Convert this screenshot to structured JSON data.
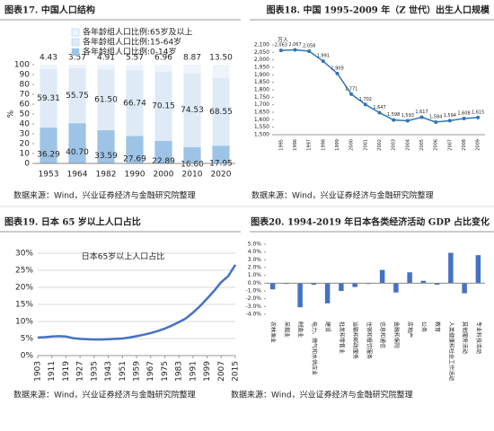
{
  "chart_data": [
    {
      "type": "bar",
      "stacked": true,
      "title": "图表17. 中国人口结构",
      "y_label": "%",
      "source": "数据来源：Wind，兴业证券经济与金融研究院整理",
      "categories": [
        "1953",
        "1964",
        "1982",
        "1990",
        "2000",
        "2010",
        "2020"
      ],
      "series": [
        {
          "name": "各年龄组人口比例:0-14岁",
          "color": "#9dc3e6",
          "values": [
            36.29,
            40.7,
            33.59,
            27.69,
            22.89,
            16.6,
            17.95
          ],
          "value_labels": [
            "36.29",
            "40.70",
            "33.59",
            "27.69",
            "22.89",
            "16.60",
            "17.95"
          ]
        },
        {
          "name": "各年龄组人口比例:15-64岁",
          "color": "#deebf7",
          "values": [
            59.31,
            55.75,
            61.5,
            66.74,
            70.15,
            74.53,
            68.55
          ],
          "value_labels": [
            "59.31",
            "55.75",
            "61.50",
            "66.74",
            "70.15",
            "74.53",
            "68.55"
          ]
        },
        {
          "name": "各年龄组人口比例:65岁及以上",
          "color": "#eef4fb",
          "values": [
            4.43,
            3.57,
            4.91,
            5.57,
            6.96,
            8.87,
            13.5
          ],
          "value_labels": [
            "4.43",
            "3.57",
            "4.91",
            "5.57",
            "6.96",
            "8.87",
            "13.50"
          ]
        }
      ],
      "ylim": [
        0,
        100
      ],
      "yticks": [
        0,
        10,
        20,
        30,
        40,
        50,
        60,
        70,
        80,
        90,
        100
      ],
      "grid": false
    },
    {
      "type": "line",
      "title": "图表18. 中国 1995-2009 年（Z 世代）出生人口规模",
      "y_label": "万人",
      "source": "数据来源：Wind，兴业证券经济与金融研究院整理",
      "categories": [
        "1995",
        "1996",
        "1997",
        "1998",
        "1999",
        "2000",
        "2001",
        "2002",
        "2003",
        "2004",
        "2005",
        "2006",
        "2007",
        "2008",
        "2009"
      ],
      "values": [
        2063,
        2067,
        2058,
        1991,
        1909,
        1771,
        1702,
        1647,
        1598,
        1593,
        1617,
        1584,
        1594,
        1608,
        1615
      ],
      "value_labels": [
        "2,063",
        "2,067",
        "2,058",
        "1,991",
        "1,909",
        "1,771",
        "1,702",
        "1,647",
        "1,598",
        "1,593",
        "1,617",
        "1,584",
        "1,594",
        "1,608",
        "1,615"
      ],
      "color": "#2e75b6",
      "markers": true,
      "ylim": [
        1500,
        2100
      ],
      "yticks": [
        {
          "value": 1500,
          "label": "1,500"
        },
        {
          "value": 1550,
          "label": "1,550"
        },
        {
          "value": 1600,
          "label": "1,600"
        },
        {
          "value": 1650,
          "label": "1,650"
        },
        {
          "value": 1700,
          "label": "1,700"
        },
        {
          "value": 1750,
          "label": "1,750"
        },
        {
          "value": 1800,
          "label": "1,800"
        },
        {
          "value": 1850,
          "label": "1,850"
        },
        {
          "value": 1900,
          "label": "1,900"
        },
        {
          "value": 1950,
          "label": "1,950"
        },
        {
          "value": 2000,
          "label": "2,000"
        },
        {
          "value": 2050,
          "label": "2,050"
        },
        {
          "value": 2100,
          "label": "2,100"
        }
      ],
      "grid": false
    },
    {
      "type": "line",
      "title": "图表19. 日本 65 岁以上人口占比",
      "annotation": "日本65岁以上人口占比",
      "source": "数据来源：Wind，兴业证券经济与金融研究院整理",
      "x": [
        1903,
        1907,
        1911,
        1915,
        1919,
        1923,
        1927,
        1931,
        1935,
        1939,
        1943,
        1947,
        1951,
        1955,
        1959,
        1963,
        1967,
        1971,
        1975,
        1979,
        1983,
        1987,
        1991,
        1995,
        1999,
        2003,
        2007,
        2011,
        2015
      ],
      "values": [
        5.3,
        5.4,
        5.6,
        5.7,
        5.6,
        5.1,
        4.9,
        4.8,
        4.7,
        4.7,
        4.8,
        4.9,
        5.0,
        5.3,
        5.7,
        6.1,
        6.6,
        7.2,
        7.9,
        8.8,
        9.8,
        10.9,
        12.6,
        14.5,
        16.7,
        19.0,
        21.5,
        23.3,
        26.6
      ],
      "color": "#4472c4",
      "markers": false,
      "xlim": [
        1903,
        2015
      ],
      "xticks": [
        1903,
        1911,
        1919,
        1927,
        1935,
        1943,
        1951,
        1959,
        1967,
        1975,
        1983,
        1991,
        1999,
        2007,
        2015
      ],
      "ylim": [
        0,
        30
      ],
      "yticks": [
        {
          "value": 0,
          "label": "0%"
        },
        {
          "value": 5,
          "label": "5%"
        },
        {
          "value": 10,
          "label": "10%"
        },
        {
          "value": 15,
          "label": "15%"
        },
        {
          "value": 20,
          "label": "20%"
        },
        {
          "value": 25,
          "label": "25%"
        },
        {
          "value": 30,
          "label": "30%"
        }
      ],
      "grid": true
    },
    {
      "type": "bar",
      "stacked": false,
      "title": "图表20. 1994-2019 年日本各类经济活动 GDP 占比变化",
      "source": "数据来源：Wind，兴业证券经济与金融研究院整理",
      "categories": [
        "农林渔业",
        "采掘业",
        "制造业",
        "电力、燃气和水供应业",
        "建设",
        "批发和零售业",
        "运输和邮政服务",
        "住宿和餐饮服务",
        "信息和通信",
        "金融和保险",
        "房地产",
        "公务",
        "教育",
        "人类健康和社会工作活动",
        "其他服务活动",
        "专业科技活动"
      ],
      "values": [
        -0.8,
        -0.1,
        -3.1,
        -0.2,
        -2.6,
        -1.0,
        -0.5,
        -0.1,
        1.7,
        -1.2,
        1.4,
        0.3,
        -0.2,
        3.9,
        -1.3,
        3.6
      ],
      "color": "#4472c4",
      "ylim": [
        -4,
        5
      ],
      "yticks": [
        {
          "value": -4,
          "label": "-4.0%"
        },
        {
          "value": -3,
          "label": "-3.0%"
        },
        {
          "value": -2,
          "label": "-2.0%"
        },
        {
          "value": -1,
          "label": "-1.0%"
        },
        {
          "value": 0,
          "label": "0.0%"
        },
        {
          "value": 1,
          "label": "1.0%"
        },
        {
          "value": 2,
          "label": "2.0%"
        },
        {
          "value": 3,
          "label": "3.0%"
        },
        {
          "value": 4,
          "label": "4.0%"
        },
        {
          "value": 5,
          "label": "5.0%"
        }
      ],
      "grid": false
    }
  ]
}
